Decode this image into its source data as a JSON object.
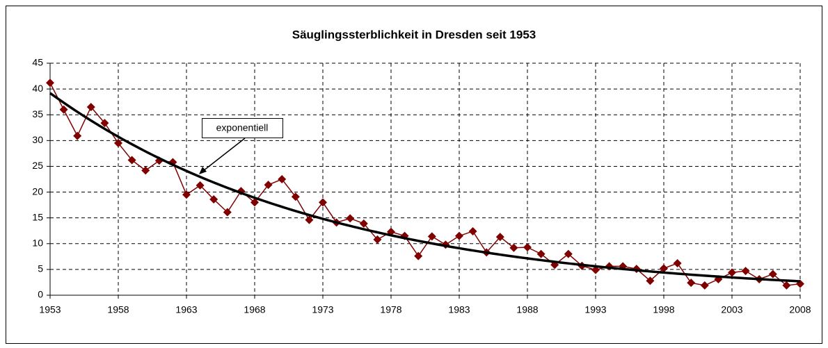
{
  "chart_data": {
    "type": "line",
    "title": "Säuglingssterblichkeit in Dresden seit 1953",
    "x": [
      1953,
      1954,
      1955,
      1956,
      1957,
      1958,
      1959,
      1960,
      1961,
      1962,
      1963,
      1964,
      1965,
      1966,
      1967,
      1968,
      1969,
      1970,
      1971,
      1972,
      1973,
      1974,
      1975,
      1976,
      1977,
      1978,
      1979,
      1980,
      1981,
      1982,
      1983,
      1984,
      1985,
      1986,
      1987,
      1988,
      1989,
      1990,
      1991,
      1992,
      1993,
      1994,
      1995,
      1996,
      1997,
      1998,
      1999,
      2000,
      2001,
      2002,
      2003,
      2004,
      2005,
      2006,
      2007,
      2008
    ],
    "series": [
      {
        "color": "#800000",
        "values": [
          41.2,
          36.0,
          30.9,
          36.5,
          33.4,
          29.5,
          26.2,
          24.2,
          26.1,
          25.8,
          19.5,
          21.3,
          18.6,
          16.1,
          20.2,
          18.0,
          21.4,
          22.5,
          19.1,
          14.6,
          18.0,
          14.1,
          14.9,
          13.9,
          10.8,
          12.3,
          11.5,
          7.6,
          11.4,
          9.8,
          11.5,
          12.4,
          8.3,
          11.3,
          9.2,
          9.3,
          8.0,
          5.9,
          8.0,
          5.7,
          4.9,
          5.6,
          5.6,
          5.1,
          2.8,
          5.2,
          6.2,
          2.4,
          1.9,
          3.1,
          4.4,
          4.7,
          3.1,
          4.1,
          1.9,
          2.2
        ]
      }
    ],
    "trend": {
      "type": "exponential",
      "label": "exponentiell",
      "start": 39.2,
      "end": 2.7,
      "color": "#000000"
    },
    "xlim": [
      1953,
      2008
    ],
    "xticks": [
      1953,
      1958,
      1963,
      1968,
      1973,
      1978,
      1983,
      1988,
      1993,
      1998,
      2003,
      2008
    ],
    "ylim": [
      0,
      45
    ],
    "yticks": [
      0,
      5,
      10,
      15,
      20,
      25,
      30,
      35,
      40,
      45
    ],
    "grid": true
  }
}
